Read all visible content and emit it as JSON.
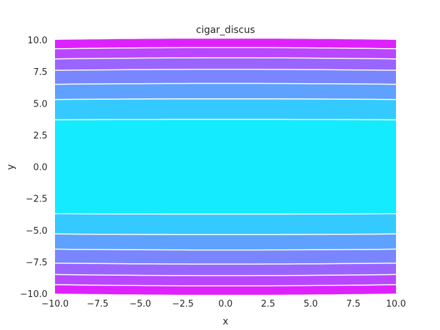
{
  "chart_data": {
    "type": "contourf",
    "title": "cigar_discus",
    "xlabel": "x",
    "ylabel": "y",
    "xlim": [
      -10,
      10
    ],
    "ylim": [
      -10,
      10
    ],
    "xticks": [
      -10,
      -7.5,
      -5,
      -2.5,
      0,
      2.5,
      5,
      7.5,
      10
    ],
    "yticks": [
      -10,
      -7.5,
      -5,
      -2.5,
      0,
      2.5,
      5,
      7.5,
      10
    ],
    "xtick_labels": [
      "−10.0",
      "−7.5",
      "−5.0",
      "−2.5",
      "0.0",
      "2.5",
      "5.0",
      "7.5",
      "10.0"
    ],
    "ytick_labels": [
      "−10.0",
      "−7.5",
      "−5.0",
      "−2.5",
      "0.0",
      "2.5",
      "5.0",
      "7.5",
      "10.0"
    ],
    "colormap": "cool",
    "contour_lines": "white",
    "grid": false,
    "bands": [
      {
        "y_from": 0,
        "y_to": 3.7,
        "color": "#14ebff"
      },
      {
        "y_from": 3.7,
        "y_to": 5.3,
        "color": "#35caff"
      },
      {
        "y_from": 5.3,
        "y_to": 6.5,
        "color": "#5ea1ff"
      },
      {
        "y_from": 6.5,
        "y_to": 7.6,
        "color": "#7986ff"
      },
      {
        "y_from": 7.6,
        "y_to": 8.5,
        "color": "#9a65ff"
      },
      {
        "y_from": 8.5,
        "y_to": 9.3,
        "color": "#b947ff"
      },
      {
        "y_from": 9.3,
        "y_to": 10,
        "color": "#dd22ff"
      }
    ],
    "outer_color": "#f10dff"
  }
}
